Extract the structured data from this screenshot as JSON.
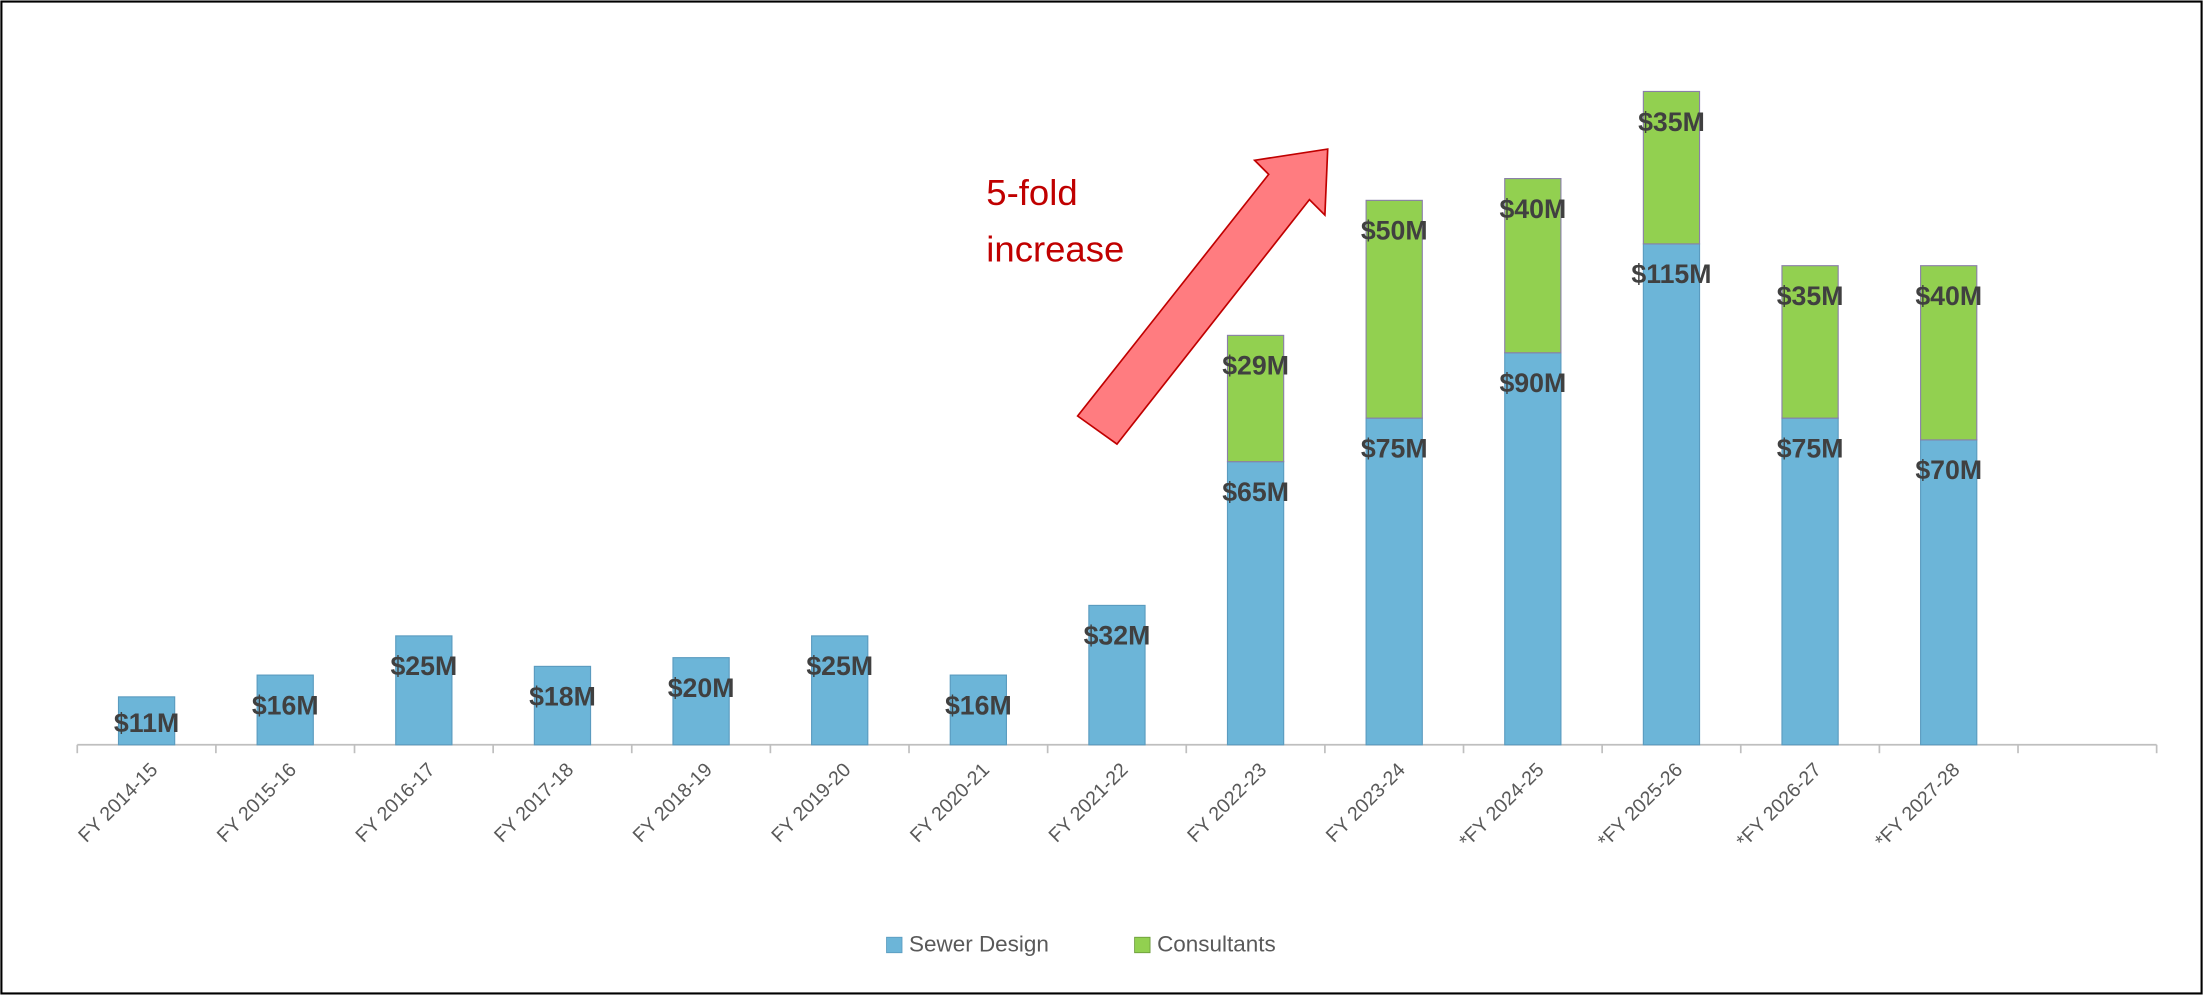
{
  "chart_data": {
    "type": "bar",
    "stacked": true,
    "categories": [
      "FY 2014-15",
      "FY 2015-16",
      "FY 2016-17",
      "FY 2017-18",
      "FY 2018-19",
      "FY 2019-20",
      "FY 2020-21",
      "FY 2021-22",
      "FY 2022-23",
      "FY 2023-24",
      "*FY 2024-25",
      "*FY 2025-26",
      "*FY 2026-27",
      "*FY 2027-28",
      null
    ],
    "series": [
      {
        "name": "Sewer Design",
        "color": "#6cb5d8",
        "values": [
          11,
          16,
          25,
          18,
          20,
          25,
          16,
          32,
          65,
          75,
          90,
          115,
          75,
          70,
          null
        ],
        "value_labels": [
          "$11M",
          "$16M",
          "$25M",
          "$18M",
          "$20M",
          "$25M",
          "$16M",
          "$32M",
          "$65M",
          "$75M",
          "$90M",
          "$115M",
          "$75M",
          "$70M",
          null
        ]
      },
      {
        "name": "Consultants",
        "color": "#92d050",
        "values": [
          null,
          null,
          null,
          null,
          null,
          null,
          null,
          null,
          29,
          50,
          40,
          35,
          35,
          40,
          null
        ],
        "value_labels": [
          null,
          null,
          null,
          null,
          null,
          null,
          null,
          null,
          "$29M",
          "$50M",
          "$40M",
          "$35M",
          "$35M",
          "$40M",
          null
        ]
      }
    ],
    "ylim": [
      0,
      160
    ],
    "annotation": [
      "5-fold",
      "increase"
    ],
    "legend": "bottom"
  }
}
